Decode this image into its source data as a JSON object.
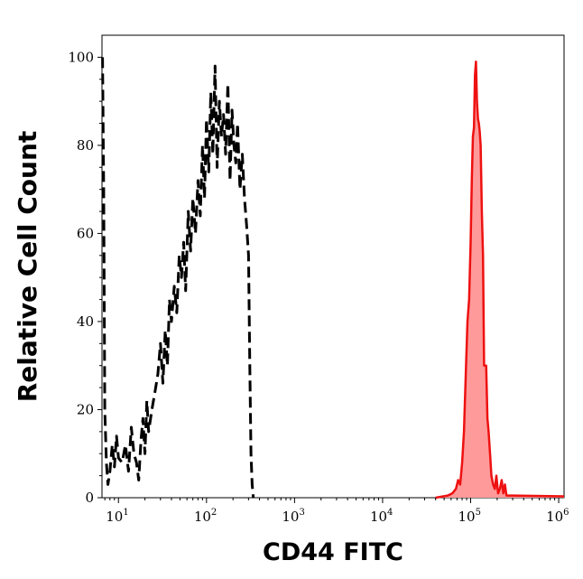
{
  "chart_data": {
    "type": "area",
    "title": "",
    "xlabel": "CD44 FITC",
    "ylabel": "Relative Cell Count",
    "x_scale": "log",
    "xlim": [
      6.5,
      1150000
    ],
    "ylim": [
      0,
      105
    ],
    "grid": false,
    "x_ticks": [
      {
        "base": "10",
        "exp": "1",
        "value": 10
      },
      {
        "base": "10",
        "exp": "2",
        "value": 100
      },
      {
        "base": "10",
        "exp": "3",
        "value": 1000
      },
      {
        "base": "10",
        "exp": "4",
        "value": 10000
      },
      {
        "base": "10",
        "exp": "5",
        "value": 100000
      },
      {
        "base": "10",
        "exp": "6",
        "value": 1000000
      }
    ],
    "y_ticks": [
      {
        "label": "0",
        "value": 0
      },
      {
        "label": "20",
        "value": 20
      },
      {
        "label": "40",
        "value": 40
      },
      {
        "label": "60",
        "value": 60
      },
      {
        "label": "80",
        "value": 80
      },
      {
        "label": "100",
        "value": 100
      }
    ],
    "series": [
      {
        "style": "dashed-outline",
        "color": "#000000",
        "x": [
          6.6,
          6.8,
          7.0,
          7.3,
          7.6,
          8.0,
          8.5,
          9.0,
          9.5,
          10,
          11,
          12,
          13,
          14,
          15,
          16,
          17,
          18,
          19,
          20,
          21,
          22,
          24,
          26,
          28,
          30,
          32,
          34,
          36,
          38,
          40,
          43,
          46,
          49,
          52,
          55,
          58,
          62,
          66,
          70,
          75,
          80,
          85,
          90,
          95,
          100,
          106,
          112,
          118,
          125,
          132,
          140,
          148,
          156,
          165,
          175,
          185,
          195,
          205,
          215,
          225,
          240,
          255,
          270,
          285,
          300,
          310,
          320,
          330,
          340
        ],
        "y": [
          100,
          70,
          20,
          8,
          3,
          6,
          12,
          7,
          14,
          9,
          8,
          12,
          6,
          16,
          10,
          8,
          4,
          13,
          18,
          10,
          22,
          15,
          20,
          24,
          28,
          35,
          26,
          38,
          30,
          45,
          40,
          48,
          42,
          55,
          50,
          58,
          47,
          65,
          56,
          68,
          60,
          72,
          64,
          80,
          68,
          86,
          74,
          92,
          78,
          98,
          75,
          90,
          82,
          87,
          78,
          94,
          72,
          88,
          80,
          76,
          85,
          70,
          78,
          68,
          62,
          55,
          30,
          10,
          3,
          0
        ]
      },
      {
        "style": "filled",
        "color": "#ee1111",
        "fill": "#ff9a9a",
        "x": [
          40000,
          55000,
          62000,
          68000,
          72000,
          76000,
          80000,
          84000,
          88000,
          92000,
          96000,
          100000,
          103000,
          106000,
          109000,
          112000,
          115000,
          118000,
          121000,
          124000,
          127000,
          130000,
          134000,
          138000,
          142000,
          146000,
          150000,
          155000,
          160000,
          166000,
          172000,
          180000,
          188000,
          196000,
          205000,
          215000,
          225000,
          235000,
          245000,
          255000,
          300000,
          1150000
        ],
        "y": [
          0,
          0.5,
          1,
          2,
          4,
          3,
          8,
          15,
          28,
          40,
          45,
          58,
          72,
          82,
          84,
          96,
          99,
          90,
          86,
          85,
          83,
          80,
          65,
          55,
          30,
          30,
          30,
          18,
          15,
          10,
          5,
          3,
          2,
          5,
          1,
          2,
          4,
          1,
          3,
          0.5,
          0.5,
          0.3
        ]
      }
    ]
  }
}
